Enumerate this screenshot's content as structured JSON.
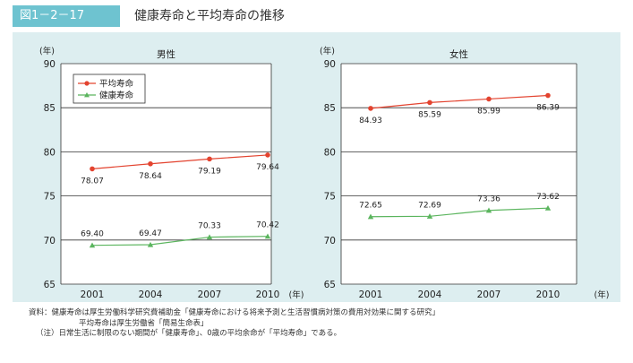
{
  "header": {
    "figure_label": "図1－2－17",
    "title": "健康寿命と平均寿命の推移"
  },
  "colors": {
    "accent": "#6ec3d0",
    "panel": "#ddeef0",
    "avg": "#e3432f",
    "healthy": "#5bb55e"
  },
  "chart_data": [
    {
      "type": "line",
      "title": "男性",
      "ylabel": "(年)",
      "xlabel": "(年)",
      "x": [
        "2001",
        "2004",
        "2007",
        "2010"
      ],
      "yticks": [
        "90",
        "85",
        "80",
        "75",
        "70",
        "65"
      ],
      "ylim": [
        65,
        90
      ],
      "legend": [
        "平均寿命",
        "健康寿命"
      ],
      "series": [
        {
          "name": "平均寿命",
          "values": [
            78.07,
            78.64,
            79.19,
            79.64
          ],
          "labels": [
            "78.07",
            "78.64",
            "79.19",
            "79.64"
          ]
        },
        {
          "name": "健康寿命",
          "values": [
            69.4,
            69.47,
            70.33,
            70.42
          ],
          "labels": [
            "69.40",
            "69.47",
            "70.33",
            "70.42"
          ]
        }
      ]
    },
    {
      "type": "line",
      "title": "女性",
      "ylabel": "(年)",
      "xlabel": "(年)",
      "x": [
        "2001",
        "2004",
        "2007",
        "2010"
      ],
      "yticks": [
        "90",
        "85",
        "80",
        "75",
        "70",
        "65"
      ],
      "ylim": [
        65,
        90
      ],
      "series": [
        {
          "name": "平均寿命",
          "values": [
            84.93,
            85.59,
            85.99,
            86.39
          ],
          "labels": [
            "84.93",
            "85.59",
            "85.99",
            "86.39"
          ]
        },
        {
          "name": "健康寿命",
          "values": [
            72.65,
            72.69,
            73.36,
            73.62
          ],
          "labels": [
            "72.65",
            "72.69",
            "73.36",
            "73.62"
          ]
        }
      ]
    }
  ],
  "notes": {
    "line1": "資料：健康寿命は厚生労働科学研究費補助金「健康寿命における将来予測と生活習慣病対策の費用対効果に関する研究」",
    "line2": "平均寿命は厚生労働省「簡易生命表」",
    "line3": "（注）日常生活に制限のない期間が「健康寿命」、0歳の平均余命が「平均寿命」である。"
  }
}
